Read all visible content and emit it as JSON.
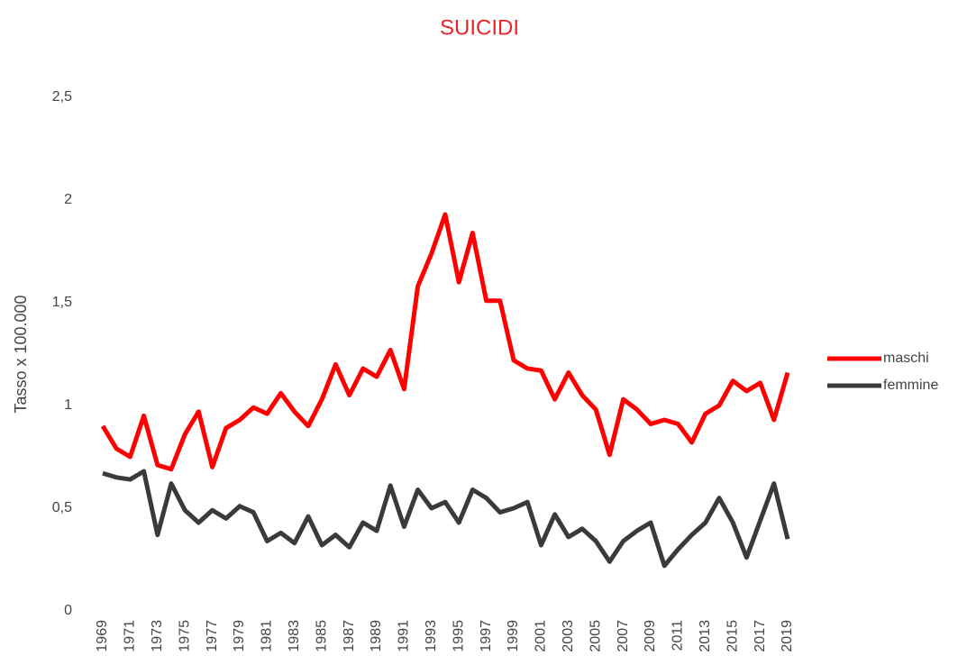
{
  "chart_data": {
    "type": "line",
    "title": "SUICIDI",
    "y_label": "Tasso x 100.000",
    "categories": [
      "1969",
      null,
      "1971",
      null,
      "1973",
      null,
      "1975",
      null,
      "1977",
      null,
      "1979",
      null,
      "1981",
      null,
      "1983",
      null,
      "1985",
      null,
      "1987",
      null,
      "1989",
      null,
      "1991",
      null,
      "1993",
      null,
      "1995",
      null,
      "1997",
      null,
      "1999",
      null,
      "2001",
      null,
      "2003",
      null,
      "2005",
      null,
      "2007",
      null,
      "2009",
      null,
      "2011",
      null,
      "2013",
      null,
      "2015",
      null,
      "2017",
      null,
      "2019"
    ],
    "series": [
      {
        "name": "maschi",
        "color": "#ff0000",
        "values": [
          0.9,
          0.79,
          0.75,
          0.95,
          0.71,
          0.69,
          0.86,
          0.97,
          0.7,
          0.89,
          0.93,
          0.99,
          0.96,
          1.06,
          0.97,
          0.9,
          1.03,
          1.2,
          1.05,
          1.18,
          1.14,
          1.27,
          1.08,
          1.58,
          1.74,
          1.93,
          1.6,
          1.84,
          1.51,
          1.51,
          1.22,
          1.18,
          1.17,
          1.03,
          1.16,
          1.05,
          0.98,
          0.76,
          1.03,
          0.98,
          0.91,
          0.93,
          0.91,
          0.82,
          0.96,
          1.0,
          1.12,
          1.07,
          1.11,
          0.93,
          1.16
        ]
      },
      {
        "name": "femmine",
        "color": "#3a3a3a",
        "values": [
          0.67,
          0.65,
          0.64,
          0.68,
          0.37,
          0.62,
          0.49,
          0.43,
          0.49,
          0.45,
          0.51,
          0.48,
          0.34,
          0.38,
          0.33,
          0.46,
          0.32,
          0.37,
          0.31,
          0.43,
          0.39,
          0.61,
          0.41,
          0.59,
          0.5,
          0.53,
          0.43,
          0.59,
          0.55,
          0.48,
          0.5,
          0.53,
          0.32,
          0.47,
          0.36,
          0.4,
          0.34,
          0.24,
          0.34,
          0.39,
          0.43,
          0.22,
          0.3,
          0.37,
          0.43,
          0.55,
          0.43,
          0.26,
          0.44,
          0.62,
          0.35
        ]
      }
    ],
    "ylim": [
      0,
      2.5
    ],
    "yticks": [
      0,
      {
        "value": 0.5,
        "label": "0,5"
      },
      1,
      {
        "value": 1.5,
        "label": "1,5"
      },
      2,
      {
        "value": 2.5,
        "label": "2,5"
      }
    ],
    "grid": false,
    "legend": "right"
  }
}
